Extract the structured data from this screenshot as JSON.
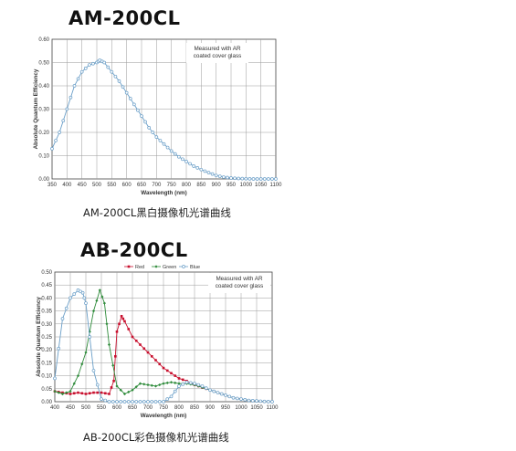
{
  "page": {
    "caption_1": "AM-200CL黑白摄像机光谱曲线",
    "caption_2": "AB-200CL彩色摄像机光谱曲线"
  },
  "chart_data": [
    {
      "type": "line",
      "title": "AM-200CL",
      "xlabel": "Wavelength (nm)",
      "ylabel": "Absolute Quantum Efficiency",
      "xlim": [
        350,
        1100
      ],
      "ylim": [
        0,
        0.6
      ],
      "xticks": [
        "350",
        "400",
        "450",
        "500",
        "550",
        "600",
        "650",
        "700",
        "750",
        "800",
        "850",
        "900",
        "950",
        "1000",
        "1050",
        "1100"
      ],
      "yticks": [
        "0.00",
        "0.10",
        "0.20",
        "0.30",
        "0.40",
        "0.50",
        "0.60"
      ],
      "annotation": [
        "Measured with AR",
        "coated cover glass"
      ],
      "grid": true,
      "series": [
        {
          "color": "#6b9fc8",
          "x": [
            350,
            375,
            400,
            425,
            450,
            475,
            500,
            510,
            525,
            550,
            575,
            600,
            625,
            650,
            675,
            700,
            725,
            750,
            775,
            800,
            825,
            850,
            875,
            900,
            925,
            950,
            975,
            1000,
            1025,
            1050,
            1075,
            1100
          ],
          "y": [
            0.13,
            0.2,
            0.3,
            0.4,
            0.46,
            0.49,
            0.5,
            0.51,
            0.5,
            0.46,
            0.42,
            0.37,
            0.32,
            0.27,
            0.22,
            0.18,
            0.15,
            0.12,
            0.095,
            0.075,
            0.055,
            0.04,
            0.027,
            0.015,
            0.008,
            0.004,
            0.002,
            0.001,
            0.0,
            0.0,
            0.0,
            0.0
          ]
        }
      ]
    },
    {
      "type": "line",
      "title": "AB-200CL",
      "xlabel": "Wavelength (nm)",
      "ylabel": "Absolute Quantum Efficiency",
      "xlim": [
        400,
        1100
      ],
      "ylim": [
        0,
        0.5
      ],
      "xticks": [
        "400",
        "450",
        "500",
        "550",
        "600",
        "650",
        "700",
        "750",
        "800",
        "850",
        "900",
        "950",
        "1000",
        "1050",
        "1100"
      ],
      "yticks": [
        "0.00",
        "0.05",
        "0.10",
        "0.15",
        "0.20",
        "0.25",
        "0.30",
        "0.35",
        "0.40",
        "0.45",
        "0.50"
      ],
      "annotation": [
        "Measured with AR",
        "coated cover glass"
      ],
      "legend": "top-center",
      "grid": true,
      "series": [
        {
          "name": "Red",
          "color": "#c8102e",
          "x": [
            400,
            425,
            450,
            475,
            500,
            525,
            550,
            575,
            590,
            600,
            615,
            625,
            650,
            675,
            700,
            725,
            750,
            775,
            800,
            825,
            850,
            875,
            900,
            925,
            950,
            975,
            1000,
            1025,
            1050,
            1075,
            1100
          ],
          "y": [
            0.04,
            0.035,
            0.03,
            0.035,
            0.03,
            0.035,
            0.035,
            0.03,
            0.08,
            0.27,
            0.33,
            0.31,
            0.25,
            0.22,
            0.19,
            0.16,
            0.13,
            0.11,
            0.09,
            0.08,
            0.065,
            0.055,
            0.045,
            0.035,
            0.025,
            0.015,
            0.01,
            0.005,
            0.003,
            0.001,
            0.0
          ]
        },
        {
          "name": "Green",
          "color": "#2e8b3a",
          "x": [
            400,
            425,
            450,
            475,
            500,
            525,
            545,
            560,
            575,
            600,
            625,
            650,
            675,
            700,
            725,
            750,
            775,
            800,
            825,
            850,
            875,
            900,
            925,
            950,
            975,
            1000,
            1025,
            1050,
            1075,
            1100
          ],
          "y": [
            0.04,
            0.03,
            0.04,
            0.1,
            0.19,
            0.35,
            0.43,
            0.38,
            0.22,
            0.06,
            0.03,
            0.045,
            0.07,
            0.065,
            0.06,
            0.07,
            0.075,
            0.07,
            0.07,
            0.065,
            0.055,
            0.045,
            0.035,
            0.025,
            0.015,
            0.01,
            0.005,
            0.003,
            0.001,
            0.0
          ]
        },
        {
          "name": "Blue",
          "color": "#6b9fc8",
          "x": [
            400,
            425,
            450,
            475,
            490,
            500,
            525,
            550,
            575,
            600,
            625,
            650,
            675,
            700,
            725,
            750,
            775,
            800,
            825,
            850,
            875,
            900,
            925,
            950,
            975,
            1000,
            1025,
            1050,
            1075,
            1100
          ],
          "y": [
            0.09,
            0.32,
            0.4,
            0.43,
            0.42,
            0.38,
            0.12,
            0.01,
            0.0,
            0.0,
            0.0,
            0.0,
            0.0,
            0.0,
            0.0,
            0.0,
            0.02,
            0.06,
            0.075,
            0.07,
            0.06,
            0.045,
            0.035,
            0.025,
            0.015,
            0.01,
            0.005,
            0.003,
            0.001,
            0.0
          ]
        }
      ]
    }
  ]
}
